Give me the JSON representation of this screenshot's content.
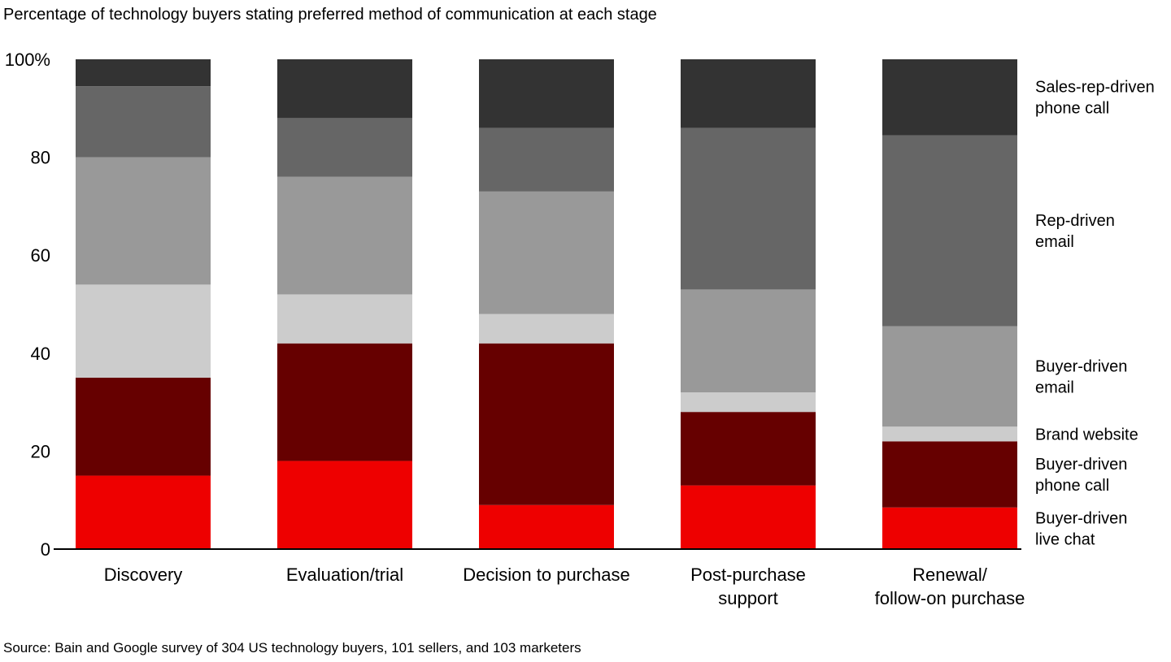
{
  "chart_data": {
    "type": "bar",
    "stacked": true,
    "title": "Percentage of technology buyers stating preferred method of communication at each stage",
    "source": "Source: Bain and Google survey of 304 US technology buyers, 101 sellers, and 103 marketers",
    "categories": [
      [
        "Discovery"
      ],
      [
        "Evaluation/trial"
      ],
      [
        "Decision to purchase"
      ],
      [
        "Post-purchase",
        "support"
      ],
      [
        "Renewal/",
        "follow-on purchase"
      ]
    ],
    "ylim": [
      0,
      100
    ],
    "yticks": [
      0,
      20,
      40,
      60,
      80,
      100
    ],
    "ytick_labels": [
      "0",
      "20",
      "40",
      "60",
      "80",
      "100%"
    ],
    "grid": false,
    "legend_placement": "right",
    "series": [
      {
        "name": "Buyer-driven live chat",
        "label_lines": [
          "Buyer-driven",
          "live chat"
        ],
        "color": "#EE0000",
        "values": [
          15,
          18,
          9,
          13,
          8.5
        ]
      },
      {
        "name": "Buyer-driven phone call",
        "label_lines": [
          "Buyer-driven",
          "phone call"
        ],
        "color": "#660000",
        "values": [
          20,
          24,
          33,
          15,
          13.5
        ]
      },
      {
        "name": "Brand website",
        "label_lines": [
          "Brand website"
        ],
        "color": "#CCCCCC",
        "values": [
          19,
          10,
          6,
          4,
          3
        ]
      },
      {
        "name": "Buyer-driven email",
        "label_lines": [
          "Buyer-driven",
          "email"
        ],
        "color": "#999999",
        "values": [
          26,
          24,
          25,
          21,
          20.5
        ]
      },
      {
        "name": "Rep-driven email",
        "label_lines": [
          "Rep-driven",
          "email"
        ],
        "color": "#666666",
        "values": [
          14.5,
          12,
          13,
          33,
          39
        ]
      },
      {
        "name": "Sales-rep-driven phone call",
        "label_lines": [
          "Sales-rep-driven",
          "phone call"
        ],
        "color": "#333333",
        "values": [
          5.5,
          12,
          14,
          14,
          15.5
        ]
      }
    ]
  }
}
